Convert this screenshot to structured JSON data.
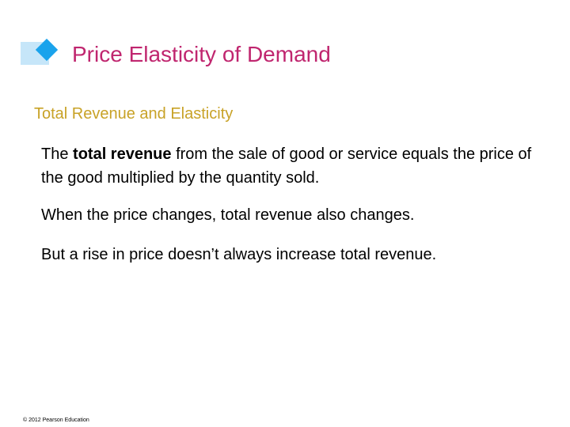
{
  "slide": {
    "title": "Price Elasticity of Demand",
    "subtitle": "Total Revenue and Elasticity",
    "paragraph1": {
      "before_bold": "The ",
      "bold": "total revenue",
      "after_bold": " from the sale of good or service equals the price of the good multiplied by the quantity sold."
    },
    "paragraph2": "When the price changes, total revenue also changes.",
    "paragraph3": "But a rise in price doesn’t always increase total revenue.",
    "footer": "© 2012 Pearson Education"
  },
  "colors": {
    "title": "#c0266f",
    "subtitle": "#c8a227",
    "bar": "#c6e6f9",
    "diamond": "#1aa3ec"
  },
  "icons": {
    "title_marker": "diamond-bullet-icon"
  }
}
